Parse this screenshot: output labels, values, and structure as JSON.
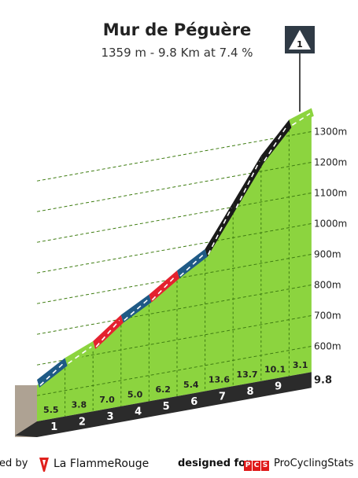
{
  "header": {
    "title": "Mur de Péguère",
    "subtitle": "1359 m - 9.8 Km at 7.4 %",
    "badge": "1"
  },
  "footer": {
    "credit_left": "red by",
    "brand_left": "La FlammeRouge",
    "designed_for": "designed for",
    "pcs_letters": [
      "P",
      "C",
      "S"
    ],
    "brand_right": "ProCyclingStats"
  },
  "colors": {
    "green": "#8cd43f",
    "dark_green": "#3f7d12",
    "blue": "#1f5a86",
    "red": "#e4222f",
    "black": "#1a1a1a",
    "base": "#b6aa9c",
    "km_bar": "#2b2b2b"
  },
  "chart_data": {
    "type": "area",
    "title": "Mur de Péguère",
    "subtitle": "1359 m - 9.8 Km at 7.4 %",
    "x_unit": "km",
    "y_unit": "m",
    "ylim": [
      500,
      1359
    ],
    "y_ticks": [
      600,
      700,
      800,
      900,
      1000,
      1100,
      1200,
      1300
    ],
    "y_tick_labels": [
      "600m",
      "700m",
      "800m",
      "900m",
      "1000m",
      "1100m",
      "1200m",
      "1300m"
    ],
    "distance_label": "9.8",
    "km_markers": [
      "1",
      "2",
      "3",
      "4",
      "5",
      "6",
      "7",
      "8",
      "9"
    ],
    "segments": [
      {
        "km": 1,
        "gradient": 5.5,
        "label": "5.5",
        "color": "blue"
      },
      {
        "km": 2,
        "gradient": 3.8,
        "label": "3.8",
        "color": "green"
      },
      {
        "km": 3,
        "gradient": 7.0,
        "label": "7.0",
        "color": "red"
      },
      {
        "km": 4,
        "gradient": 5.0,
        "label": "5.0",
        "color": "blue"
      },
      {
        "km": 5,
        "gradient": 6.2,
        "label": "6.2",
        "color": "red"
      },
      {
        "km": 6,
        "gradient": 5.4,
        "label": "5.4",
        "color": "blue"
      },
      {
        "km": 7,
        "gradient": 13.6,
        "label": "13.6",
        "color": "black"
      },
      {
        "km": 8,
        "gradient": 13.7,
        "label": "13.7",
        "color": "black"
      },
      {
        "km": 9,
        "gradient": 10.1,
        "label": "10.1",
        "color": "black"
      },
      {
        "km": 9.8,
        "gradient": 3.1,
        "label": "3.1",
        "color": "green"
      }
    ],
    "grid": true,
    "legend": "none"
  }
}
